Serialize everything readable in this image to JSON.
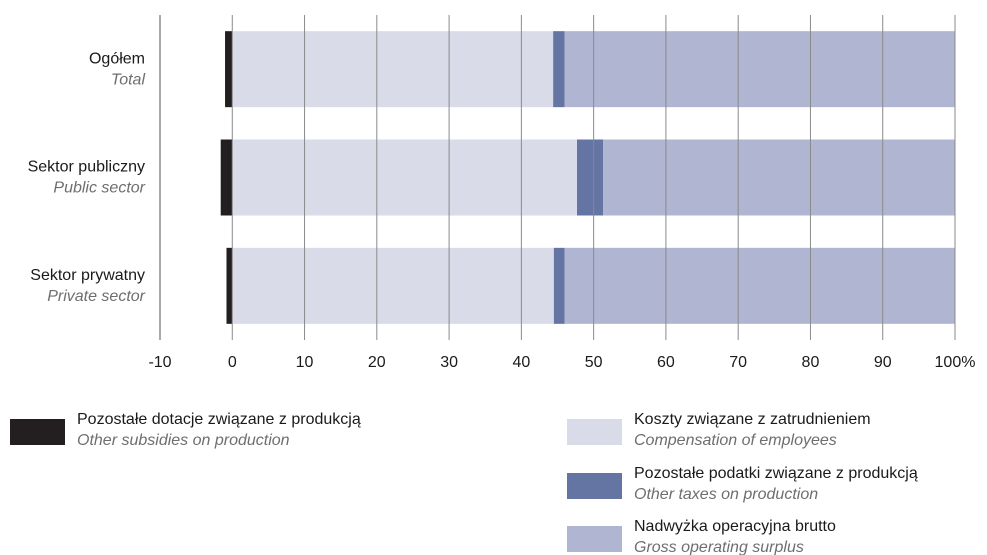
{
  "chart_data": {
    "type": "stacked_bar_horizontal",
    "categories": [
      "Ogółem",
      "Sektor publiczny",
      "Sektor prywatny"
    ],
    "categories_en": [
      "Total",
      "Public sector",
      "Private sector"
    ],
    "series": [
      {
        "name": "Pozostałe dotacje związane z produkcją",
        "name_en": "Other subsidies on production",
        "color": "#231f20",
        "values": [
          -1.0,
          -1.6,
          -0.8
        ]
      },
      {
        "name": "Koszty związane z zatrudnieniem",
        "name_en": "Compensation of employees",
        "color": "#d9dbe9",
        "values": [
          44.4,
          47.7,
          44.5
        ]
      },
      {
        "name": "Pozostałe podatki związane z produkcją",
        "name_en": "Other taxes on production",
        "color": "#6474a3",
        "values": [
          1.6,
          3.6,
          1.5
        ]
      },
      {
        "name": "Nadwyżka operacyjna brutto",
        "name_en": "Gross operating surplus",
        "color": "#b0b5d2",
        "values": [
          54.0,
          48.7,
          54.0
        ]
      }
    ],
    "xlim": [
      -10,
      100
    ],
    "xticks": [
      -10,
      0,
      10,
      20,
      30,
      40,
      50,
      60,
      70,
      80,
      90,
      {
        "value": 100,
        "label": "100%"
      }
    ],
    "grid": true
  }
}
